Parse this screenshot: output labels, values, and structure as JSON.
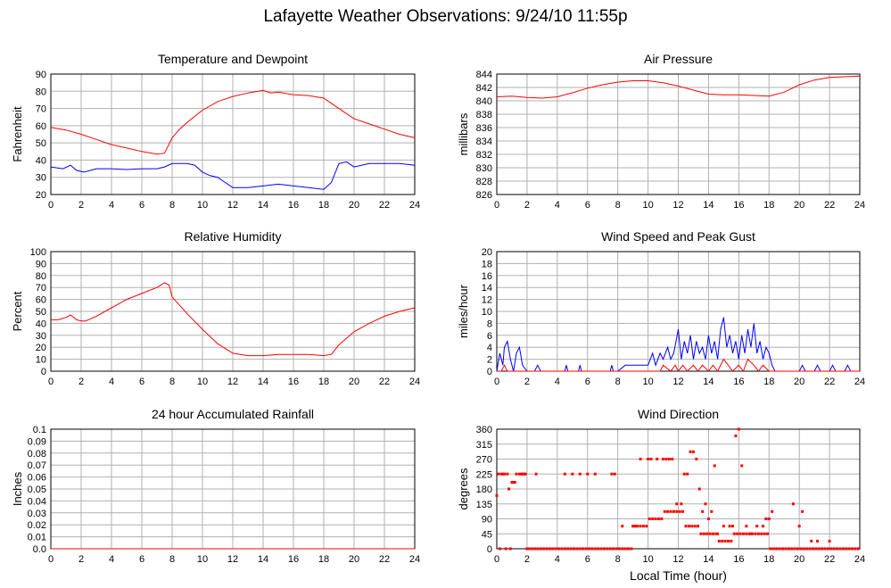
{
  "page_title": "Lafayette Weather Observations: 9/24/10 11:55p",
  "footer_xlabel": "Local Time (hour)",
  "colors": {
    "red": "#ff0000",
    "blue": "#0000ff",
    "grid": "#b0b0b0",
    "frame": "#000000"
  },
  "chart_data": [
    {
      "id": "temp",
      "type": "line",
      "title": "Temperature and Dewpoint",
      "xlabel": "",
      "ylabel": "Fahrenheit",
      "xlim": [
        0,
        24
      ],
      "ylim": [
        20,
        90
      ],
      "xticks": [
        0,
        2,
        4,
        6,
        8,
        10,
        12,
        14,
        16,
        18,
        20,
        22,
        24
      ],
      "yticks": [
        20,
        30,
        40,
        50,
        60,
        70,
        80,
        90
      ],
      "grid": true,
      "series": [
        {
          "color": "#ff0000",
          "x": [
            0,
            1,
            2,
            3,
            4,
            5,
            6,
            7,
            7.5,
            8,
            8.5,
            9,
            10,
            11,
            12,
            13,
            14,
            14.5,
            15,
            16,
            17,
            18,
            18.5,
            19,
            20,
            21,
            22,
            23,
            24
          ],
          "y": [
            59,
            57.5,
            55,
            52,
            49,
            47,
            45,
            43.5,
            44,
            53,
            58,
            62,
            69,
            74,
            77,
            79,
            80.5,
            79,
            79.5,
            78,
            77.5,
            76,
            73,
            70,
            64,
            61,
            58,
            55,
            53
          ]
        },
        {
          "color": "#0000ff",
          "x": [
            0,
            0.8,
            1.3,
            1.7,
            2.2,
            3,
            4,
            5,
            6,
            7,
            7.5,
            8,
            9,
            9.5,
            10,
            10.5,
            11,
            11.5,
            12,
            13,
            14,
            15,
            16,
            17,
            18,
            18.5,
            19,
            19.5,
            20,
            21,
            22,
            23,
            24
          ],
          "y": [
            36,
            35,
            37,
            34,
            33,
            35,
            35,
            34.5,
            35,
            35,
            36,
            38,
            38,
            37,
            33,
            31,
            30,
            27,
            24,
            24,
            25,
            26,
            25,
            24,
            23,
            27,
            38,
            39,
            36,
            38,
            38,
            38,
            37
          ]
        }
      ]
    },
    {
      "id": "pressure",
      "type": "line",
      "title": "Air Pressure",
      "xlabel": "",
      "ylabel": "millibars",
      "xlim": [
        0,
        24
      ],
      "ylim": [
        826,
        844
      ],
      "xticks": [
        0,
        2,
        4,
        6,
        8,
        10,
        12,
        14,
        16,
        18,
        20,
        22,
        24
      ],
      "yticks": [
        826,
        828,
        830,
        832,
        834,
        836,
        838,
        840,
        842,
        844
      ],
      "grid": true,
      "series": [
        {
          "color": "#ff0000",
          "x": [
            0,
            1,
            2,
            3,
            4,
            5,
            6,
            7,
            8,
            9,
            10,
            11,
            12,
            13,
            14,
            15,
            16,
            17,
            18,
            19,
            20,
            21,
            22,
            23,
            24
          ],
          "y": [
            840.6,
            840.7,
            840.5,
            840.4,
            840.6,
            841.2,
            841.9,
            842.4,
            842.8,
            843.0,
            843.0,
            842.7,
            842.2,
            841.6,
            841.0,
            840.9,
            840.9,
            840.8,
            840.7,
            841.3,
            842.4,
            843.1,
            843.5,
            843.6,
            843.7
          ]
        }
      ]
    },
    {
      "id": "humidity",
      "type": "line",
      "title": "Relative Humidity",
      "xlabel": "",
      "ylabel": "Percent",
      "xlim": [
        0,
        24
      ],
      "ylim": [
        0,
        100
      ],
      "xticks": [
        0,
        2,
        4,
        6,
        8,
        10,
        12,
        14,
        16,
        18,
        20,
        22,
        24
      ],
      "yticks": [
        0,
        10,
        20,
        30,
        40,
        50,
        60,
        70,
        80,
        90,
        100
      ],
      "grid": true,
      "series": [
        {
          "color": "#ff0000",
          "x": [
            0,
            0.5,
            1,
            1.3,
            1.7,
            2,
            2.3,
            3,
            4,
            5,
            6,
            7,
            7.5,
            7.8,
            8,
            9,
            10,
            11,
            12,
            13,
            14,
            15,
            16,
            17,
            18,
            18.5,
            19,
            20,
            21,
            22,
            23,
            24
          ],
          "y": [
            43,
            43,
            45,
            47,
            43,
            42,
            42,
            46,
            53,
            60,
            65,
            70,
            74,
            72,
            62,
            48,
            35,
            23,
            15,
            13,
            13,
            14,
            14,
            14,
            13,
            14,
            22,
            33,
            40,
            46,
            50,
            53
          ]
        }
      ]
    },
    {
      "id": "wind",
      "type": "line",
      "title": "Wind Speed and Peak Gust",
      "xlabel": "",
      "ylabel": "miles/hour",
      "xlim": [
        0,
        24
      ],
      "ylim": [
        0,
        20
      ],
      "xticks": [
        0,
        2,
        4,
        6,
        8,
        10,
        12,
        14,
        16,
        18,
        20,
        22,
        24
      ],
      "yticks": [
        0,
        2,
        4,
        6,
        8,
        10,
        12,
        14,
        16,
        18,
        20
      ],
      "grid": true,
      "series": [
        {
          "color": "#0000ff",
          "x": [
            0,
            0.2,
            0.4,
            0.5,
            0.7,
            0.9,
            1.1,
            1.3,
            1.5,
            1.7,
            2,
            2.5,
            2.7,
            2.9,
            3,
            4,
            4.5,
            4.6,
            4.7,
            5,
            5.4,
            5.5,
            5.6,
            6,
            7,
            7.5,
            7.6,
            7.7,
            8,
            8.5,
            9,
            10,
            10.3,
            10.5,
            10.8,
            11,
            11.3,
            11.5,
            11.7,
            12,
            12.2,
            12.4,
            12.6,
            12.8,
            13,
            13.2,
            13.4,
            13.6,
            13.8,
            14,
            14.2,
            14.4,
            14.6,
            14.8,
            15,
            15.2,
            15.4,
            15.6,
            15.8,
            16,
            16.2,
            16.4,
            16.6,
            16.8,
            17,
            17.2,
            17.4,
            17.6,
            17.8,
            18,
            18.2,
            18.4,
            19,
            20,
            20.2,
            20.4,
            21,
            21.2,
            21.4,
            22,
            22.2,
            22.4,
            23,
            23.2,
            23.4,
            24
          ],
          "y": [
            0,
            3,
            1,
            4,
            5,
            2,
            0,
            3,
            4,
            1,
            0,
            0,
            1,
            0,
            0,
            0,
            0,
            1,
            0,
            0,
            0,
            1,
            0,
            0,
            0,
            0,
            1,
            0,
            0,
            1,
            1,
            1,
            3,
            1,
            3,
            2,
            4,
            2,
            3,
            7,
            2,
            5,
            3,
            6,
            2,
            5,
            3,
            4,
            2,
            6,
            3,
            5,
            2,
            7,
            9,
            4,
            6,
            3,
            5,
            2,
            6,
            3,
            7,
            4,
            8,
            3,
            5,
            2,
            4,
            3,
            1,
            0,
            0,
            0,
            1,
            0,
            0,
            1,
            0,
            0,
            1,
            0,
            0,
            1,
            0,
            0
          ]
        },
        {
          "color": "#ff0000",
          "x": [
            0,
            0.3,
            0.5,
            0.7,
            1,
            10.8,
            11,
            11.5,
            11.8,
            12,
            12.3,
            12.6,
            13,
            13.3,
            13.6,
            14,
            14.3,
            14.6,
            15,
            15.3,
            15.6,
            16,
            16.3,
            16.6,
            17,
            17.3,
            17.6,
            18,
            24
          ],
          "y": [
            0,
            0,
            1,
            0,
            0,
            0,
            1,
            0,
            1,
            0,
            1,
            0,
            1,
            0,
            1,
            0,
            1,
            0,
            2,
            1,
            0,
            1,
            0,
            2,
            1,
            0,
            1,
            0,
            0
          ]
        }
      ]
    },
    {
      "id": "rain",
      "type": "line",
      "title": "24 hour Accumulated Rainfall",
      "xlabel": "",
      "ylabel": "Inches",
      "xlim": [
        0,
        24
      ],
      "ylim": [
        0,
        0.1
      ],
      "xticks": [
        0,
        2,
        4,
        6,
        8,
        10,
        12,
        14,
        16,
        18,
        20,
        22,
        24
      ],
      "yticks": [
        0,
        0.01,
        0.02,
        0.03,
        0.04,
        0.05,
        0.06,
        0.07,
        0.08,
        0.09,
        0.1
      ],
      "ytick_labels": [
        "0.0",
        "0.01",
        "0.02",
        "0.03",
        "0.04",
        "0.05",
        "0.06",
        "0.07",
        "0.08",
        "0.09",
        "0.1"
      ],
      "grid": true,
      "series": [
        {
          "color": "#ff0000",
          "x": [
            0,
            24
          ],
          "y": [
            0,
            0
          ]
        }
      ]
    },
    {
      "id": "direction",
      "type": "scatter",
      "title": "Wind Direction",
      "xlabel": "Local Time (hour)",
      "ylabel": "degrees",
      "xlim": [
        0,
        24
      ],
      "ylim": [
        0,
        360
      ],
      "xticks": [
        0,
        2,
        4,
        6,
        8,
        10,
        12,
        14,
        16,
        18,
        20,
        22,
        24
      ],
      "yticks": [
        0,
        45,
        90,
        135,
        180,
        225,
        270,
        315,
        360
      ],
      "grid": true,
      "series": [
        {
          "color": "#ff0000",
          "x": [
            0,
            0.1,
            0.2,
            0.3,
            0.4,
            0.5,
            0.6,
            0.7,
            0.8,
            0.9,
            1.0,
            1.1,
            1.2,
            1.3,
            1.5,
            1.6,
            1.7,
            1.8,
            1.9,
            2.0,
            2.1,
            2.3,
            2.5,
            2.7,
            2.9,
            3.1,
            3.3,
            3.5,
            3.7,
            3.9,
            4.1,
            4.3,
            4.5,
            4.7,
            4.9,
            5.1,
            5.3,
            5.5,
            5.7,
            5.9,
            6.1,
            6.3,
            6.5,
            6.7,
            6.9,
            7.1,
            7.3,
            7.5,
            7.7,
            7.9,
            8.1,
            8.3,
            8.5,
            8.7,
            8.9,
            9.1,
            9.3,
            9.5,
            9.7,
            9.9,
            10.1,
            10.3,
            10.5,
            10.7,
            10.9,
            11.1,
            11.3,
            11.5,
            11.7,
            11.9,
            12.1,
            12.3,
            12.5,
            12.7,
            12.9,
            13.1,
            13.3,
            13.5,
            13.7,
            13.9,
            14.1,
            14.3,
            14.5,
            14.7,
            14.9,
            15.1,
            15.3,
            15.5,
            15.7,
            15.9,
            16.1,
            16.3,
            16.5,
            16.7,
            16.9,
            17.1,
            17.3,
            17.5,
            17.7,
            17.9,
            18.1,
            18.3,
            18.5,
            18.7,
            18.9,
            19.1,
            19.3,
            19.5,
            19.7,
            19.9,
            20.1,
            20.3,
            20.5,
            20.7,
            20.9,
            21.1,
            21.3,
            21.5,
            21.7,
            21.9,
            22.1,
            22.3,
            22.5,
            22.7,
            22.9,
            23.1,
            23.3,
            23.5,
            23.7,
            23.9,
            2.6,
            4.5,
            5.0,
            5.5,
            6.0,
            6.5,
            7.6,
            7.8,
            8.3,
            9.0,
            9.2,
            9.5,
            10.0,
            10.2,
            10.6,
            11.0,
            11.2,
            11.4,
            11.6,
            11.9,
            12.2,
            12.4,
            12.6,
            12.8,
            13.0,
            13.2,
            13.4,
            13.6,
            13.8,
            14.0,
            14.2,
            14.4,
            14.6,
            15.0,
            15.4,
            15.6,
            15.8,
            16.0,
            16.2,
            16.5,
            16.8,
            17.2,
            17.6,
            17.8,
            18.0,
            18.2,
            19.6,
            20.0,
            20.2,
            20.8,
            21.2,
            22.0
          ],
          "y": [
            160,
            225,
            0,
            225,
            225,
            225,
            0,
            225,
            180,
            0,
            200,
            200,
            200,
            225,
            225,
            225,
            225,
            225,
            225,
            0,
            0,
            0,
            0,
            0,
            0,
            0,
            0,
            0,
            0,
            0,
            0,
            0,
            0,
            0,
            0,
            0,
            0,
            0,
            0,
            0,
            0,
            0,
            0,
            0,
            0,
            0,
            0,
            0,
            0,
            0,
            0,
            0,
            0,
            0,
            0,
            68,
            68,
            68,
            68,
            68,
            90,
            90,
            90,
            90,
            90,
            112,
            112,
            112,
            112,
            112,
            112,
            112,
            68,
            68,
            68,
            68,
            68,
            45,
            45,
            45,
            45,
            45,
            45,
            23,
            23,
            23,
            23,
            23,
            45,
            45,
            45,
            45,
            45,
            45,
            45,
            45,
            45,
            45,
            45,
            45,
            0,
            0,
            0,
            0,
            0,
            0,
            0,
            0,
            0,
            0,
            0,
            0,
            0,
            0,
            0,
            0,
            0,
            0,
            0,
            0,
            0,
            0,
            0,
            0,
            0,
            0,
            0,
            0,
            0,
            0,
            225,
            225,
            225,
            225,
            225,
            225,
            225,
            225,
            68,
            68,
            68,
            270,
            270,
            270,
            270,
            270,
            270,
            270,
            270,
            135,
            135,
            225,
            225,
            292,
            292,
            270,
            180,
            112,
            135,
            90,
            112,
            250,
            45,
            68,
            68,
            68,
            340,
            360,
            250,
            68,
            45,
            68,
            68,
            90,
            90,
            112,
            135,
            68,
            112,
            23,
            23,
            23
          ]
        }
      ]
    }
  ]
}
